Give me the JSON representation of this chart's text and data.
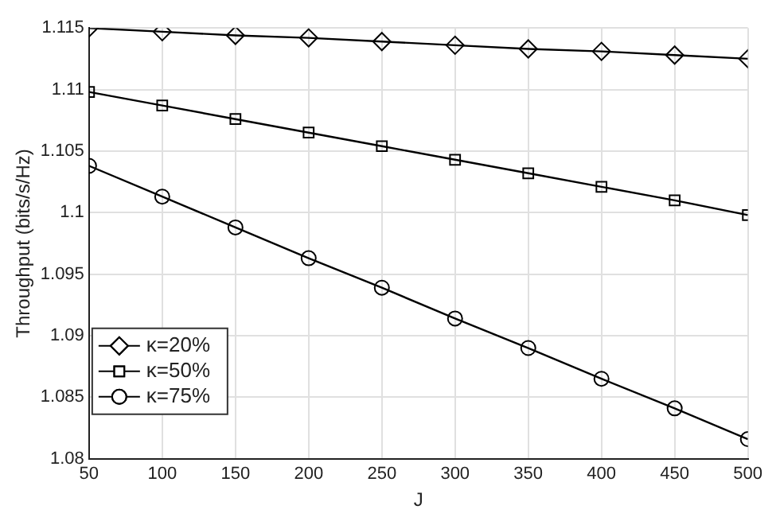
{
  "chart_data": {
    "type": "line",
    "xlabel": "J",
    "ylabel": "Throughput (bits/s/Hz)",
    "x": [
      50,
      100,
      150,
      200,
      250,
      300,
      350,
      400,
      450,
      500
    ],
    "series": [
      {
        "name": "κ=20%",
        "color": "#000000",
        "marker": "diamond",
        "values": [
          1.115,
          1.1147,
          1.1144,
          1.1142,
          1.1139,
          1.1136,
          1.1133,
          1.1131,
          1.1128,
          1.1125
        ]
      },
      {
        "name": "κ=50%",
        "color": "#000000",
        "marker": "square",
        "values": [
          1.1098,
          1.1087,
          1.1076,
          1.1065,
          1.1054,
          1.1043,
          1.1032,
          1.1021,
          1.101,
          1.0998
        ]
      },
      {
        "name": "κ=75%",
        "color": "#000000",
        "marker": "circle",
        "values": [
          1.1038,
          1.1013,
          1.0988,
          1.0963,
          1.0939,
          1.0914,
          1.089,
          1.0865,
          1.0841,
          1.0816
        ]
      }
    ],
    "xlim": [
      50,
      500
    ],
    "xticks": [
      50,
      100,
      150,
      200,
      250,
      300,
      350,
      400,
      450,
      500
    ],
    "ylim": [
      1.08,
      1.115
    ],
    "yticks": [
      1.08,
      1.085,
      1.09,
      1.095,
      1.1,
      1.105,
      1.11,
      1.115
    ],
    "grid": true,
    "legend": "bottom left",
    "line_style": "solid"
  }
}
